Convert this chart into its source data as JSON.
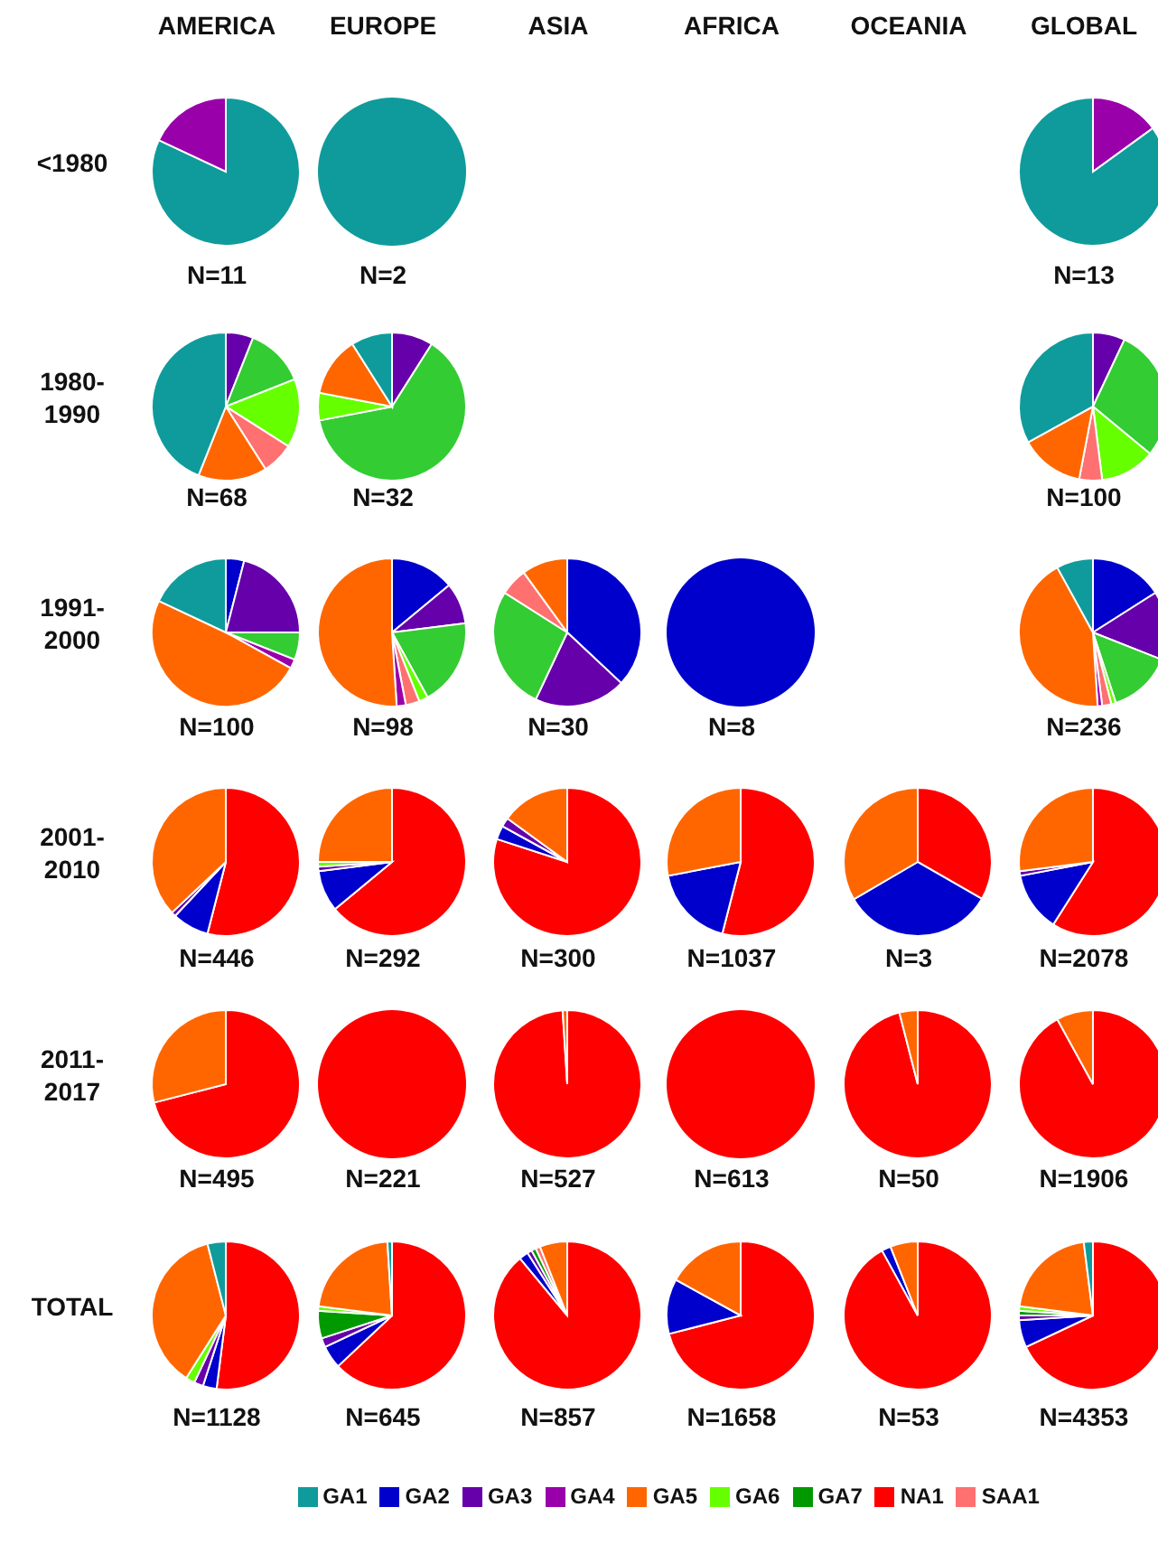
{
  "chart_data": [
    {
      "type": "other",
      "annotations": [
        "AMERICA",
        "EUROPE",
        "ASIA",
        "AFRICA",
        "OCEANIA",
        "GLOBAL"
      ]
    },
    {
      "type": "pie",
      "ylabel": "<1980",
      "xlabel": "N=11",
      "values": [
        82,
        18
      ],
      "colors": [
        "#0f9b9b",
        "#9900aa"
      ]
    },
    {
      "type": "pie",
      "xlabel": "N=2",
      "values": [
        100
      ],
      "colors": [
        "#0f9b9b"
      ]
    },
    {
      "type": "pie",
      "xlabel": "N=13",
      "values": [
        15,
        85
      ],
      "colors": [
        "#9900aa",
        "#0f9b9b"
      ]
    },
    {
      "type": "pie",
      "ylabel": "1980-1990",
      "xlabel": "N=68",
      "values": [
        6,
        13,
        15,
        7,
        15,
        44
      ],
      "colors": [
        "#6600aa",
        "#33cc33",
        "#66ff00",
        "#ff7070",
        "#ff6600",
        "#0f9b9b"
      ]
    },
    {
      "type": "pie",
      "xlabel": "N=32",
      "values": [
        9,
        63,
        6,
        13,
        9
      ],
      "colors": [
        "#6600aa",
        "#33cc33",
        "#66ff00",
        "#ff6600",
        "#0f9b9b"
      ]
    },
    {
      "type": "pie",
      "xlabel": "N=100",
      "values": [
        7,
        29,
        12,
        5,
        14,
        33
      ],
      "colors": [
        "#6600aa",
        "#33cc33",
        "#66ff00",
        "#ff7070",
        "#ff6600",
        "#0f9b9b"
      ]
    },
    {
      "type": "pie",
      "ylabel": "1991-2000",
      "xlabel": "N=100",
      "values": [
        4,
        21,
        6,
        2,
        49,
        18
      ],
      "colors": [
        "#0000cc",
        "#6600aa",
        "#33cc33",
        "#9900aa",
        "#ff6600",
        "#0f9b9b"
      ]
    },
    {
      "type": "pie",
      "xlabel": "N=98",
      "values": [
        14,
        9,
        19,
        2,
        3,
        2,
        51
      ],
      "colors": [
        "#0000cc",
        "#6600aa",
        "#33cc33",
        "#66ff00",
        "#ff7070",
        "#9900aa",
        "#ff6600"
      ]
    },
    {
      "type": "pie",
      "xlabel": "N=30",
      "values": [
        37,
        20,
        27,
        6,
        10
      ],
      "colors": [
        "#0000cc",
        "#6600aa",
        "#33cc33",
        "#ff7070",
        "#ff6600"
      ]
    },
    {
      "type": "pie",
      "xlabel": "N=8",
      "values": [
        100
      ],
      "colors": [
        "#0000cc"
      ]
    },
    {
      "type": "pie",
      "xlabel": "N=236",
      "values": [
        16,
        15,
        14,
        1,
        2,
        1,
        43,
        8
      ],
      "colors": [
        "#0000cc",
        "#6600aa",
        "#33cc33",
        "#66ff00",
        "#ff7070",
        "#9900aa",
        "#ff6600",
        "#0f9b9b"
      ]
    },
    {
      "type": "pie",
      "ylabel": "2001-2010",
      "xlabel": "N=446",
      "values": [
        54,
        8,
        1,
        37
      ],
      "colors": [
        "#ff0000",
        "#0000cc",
        "#6600aa",
        "#ff6600"
      ]
    },
    {
      "type": "pie",
      "xlabel": "N=292",
      "values": [
        64,
        9,
        1,
        1,
        25
      ],
      "colors": [
        "#ff0000",
        "#0000cc",
        "#6600aa",
        "#66ff00",
        "#ff6600"
      ]
    },
    {
      "type": "pie",
      "xlabel": "N=300",
      "values": [
        80,
        3,
        2,
        15
      ],
      "colors": [
        "#ff0000",
        "#0000cc",
        "#6600aa",
        "#ff6600"
      ]
    },
    {
      "type": "pie",
      "xlabel": "N=1037",
      "values": [
        54,
        18,
        28
      ],
      "colors": [
        "#ff0000",
        "#0000cc",
        "#ff6600"
      ]
    },
    {
      "type": "pie",
      "xlabel": "N=3",
      "values": [
        33.3,
        33.3,
        33.4
      ],
      "colors": [
        "#ff0000",
        "#0000cc",
        "#ff6600"
      ]
    },
    {
      "type": "pie",
      "xlabel": "N=2078",
      "values": [
        59,
        13,
        1,
        27
      ],
      "colors": [
        "#ff0000",
        "#0000cc",
        "#6600aa",
        "#ff6600"
      ]
    },
    {
      "type": "pie",
      "ylabel": "2011-2017",
      "xlabel": "N=495",
      "values": [
        71,
        29
      ],
      "colors": [
        "#ff0000",
        "#ff6600"
      ]
    },
    {
      "type": "pie",
      "xlabel": "N=221",
      "values": [
        100
      ],
      "colors": [
        "#ff0000"
      ]
    },
    {
      "type": "pie",
      "xlabel": "N=527",
      "values": [
        99,
        1
      ],
      "colors": [
        "#ff0000",
        "#ff6600"
      ]
    },
    {
      "type": "pie",
      "xlabel": "N=613",
      "values": [
        100
      ],
      "colors": [
        "#ff0000"
      ]
    },
    {
      "type": "pie",
      "xlabel": "N=50",
      "values": [
        96,
        4
      ],
      "colors": [
        "#ff0000",
        "#ff6600"
      ]
    },
    {
      "type": "pie",
      "xlabel": "N=1906",
      "values": [
        92,
        8
      ],
      "colors": [
        "#ff0000",
        "#ff6600"
      ]
    },
    {
      "type": "pie",
      "ylabel": "TOTAL",
      "xlabel": "N=1128",
      "values": [
        52,
        3,
        2,
        2,
        37,
        4
      ],
      "colors": [
        "#ff0000",
        "#0000cc",
        "#6600aa",
        "#66ff00",
        "#ff6600",
        "#0f9b9b"
      ]
    },
    {
      "type": "pie",
      "xlabel": "N=645",
      "values": [
        63,
        5,
        2,
        6,
        1,
        22,
        1
      ],
      "colors": [
        "#ff0000",
        "#0000cc",
        "#6600aa",
        "#009900",
        "#66ff00",
        "#ff6600",
        "#0f9b9b"
      ]
    },
    {
      "type": "pie",
      "xlabel": "N=857",
      "values": [
        89,
        2,
        1,
        1,
        1,
        6
      ],
      "colors": [
        "#ff0000",
        "#0000cc",
        "#6600aa",
        "#009900",
        "#ff7070",
        "#ff6600"
      ]
    },
    {
      "type": "pie",
      "xlabel": "N=1658",
      "values": [
        71,
        12,
        17
      ],
      "colors": [
        "#ff0000",
        "#0000cc",
        "#ff6600"
      ]
    },
    {
      "type": "pie",
      "xlabel": "N=53",
      "values": [
        92,
        2,
        6
      ],
      "colors": [
        "#ff0000",
        "#0000cc",
        "#ff6600"
      ]
    },
    {
      "type": "pie",
      "xlabel": "N=4353",
      "values": [
        68,
        6,
        1,
        1,
        1,
        21,
        2
      ],
      "colors": [
        "#ff0000",
        "#0000cc",
        "#6600aa",
        "#009900",
        "#66ff00",
        "#ff6600",
        "#0f9b9b"
      ]
    },
    {
      "type": "other",
      "categories": [
        "GA1",
        "GA2",
        "GA3",
        "GA4",
        "GA5",
        "GA6",
        "GA7",
        "NA1",
        "SAA1"
      ],
      "colors": [
        "#0f9b9b",
        "#0000cc",
        "#6600aa",
        "#9900aa",
        "#ff6600",
        "#66ff00",
        "#009900",
        "#ff0000",
        "#ff7070"
      ]
    }
  ]
}
